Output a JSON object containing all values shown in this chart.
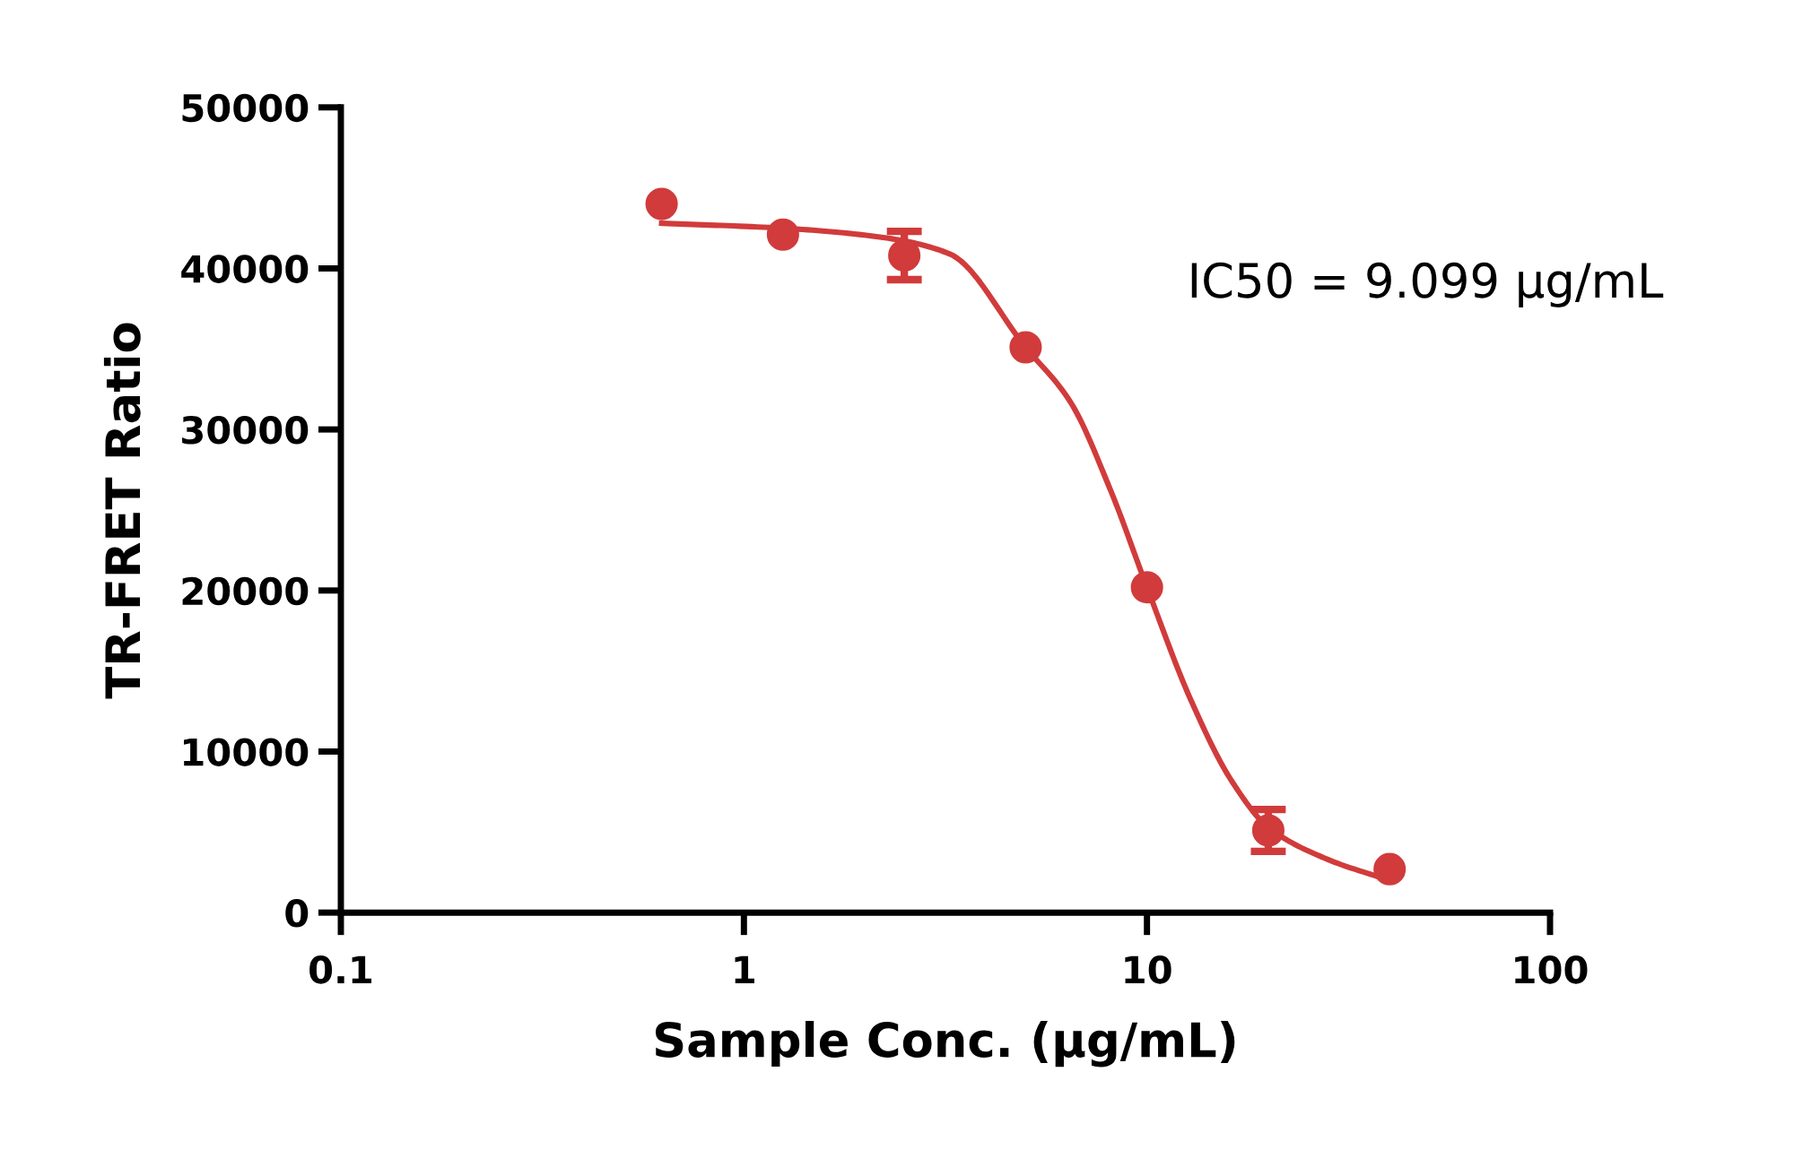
{
  "chart_data": {
    "type": "scatter",
    "xlabel": "Sample Conc. (µg/mL)",
    "ylabel": "TR-FRET Ratio",
    "log": "x",
    "xlim": [
      0.1,
      100
    ],
    "xticks": [
      0.1,
      1,
      10,
      100
    ],
    "ylim": [
      0,
      50000
    ],
    "yticks": [
      0,
      10000,
      20000,
      30000,
      40000,
      50000
    ],
    "grid": false,
    "legend": false,
    "annotations": [
      "IC50 = 9.099 µg/mL"
    ],
    "series": [
      {
        "color": "#d13b3b",
        "marker": "circle",
        "x": [
          0.625,
          1.25,
          2.5,
          5,
          10,
          20,
          40
        ],
        "values": [
          44000,
          42100,
          40800,
          35100,
          20200,
          5100,
          2700
        ],
        "errors": [
          null,
          null,
          1500,
          null,
          null,
          1300,
          null
        ]
      },
      {
        "type": "line",
        "color": "#d13b3b",
        "marker": "none",
        "line_style": "solid",
        "x": [
          0.625,
          1.24,
          2.24,
          3.24,
          5,
          6.46,
          8.13,
          10,
          12.85,
          16.2,
          20,
          28.1,
          40
        ],
        "values": [
          42800,
          42500,
          41900,
          40900,
          35100,
          31700,
          26200,
          20200,
          13200,
          8200,
          5300,
          3300,
          2000
        ]
      }
    ]
  }
}
